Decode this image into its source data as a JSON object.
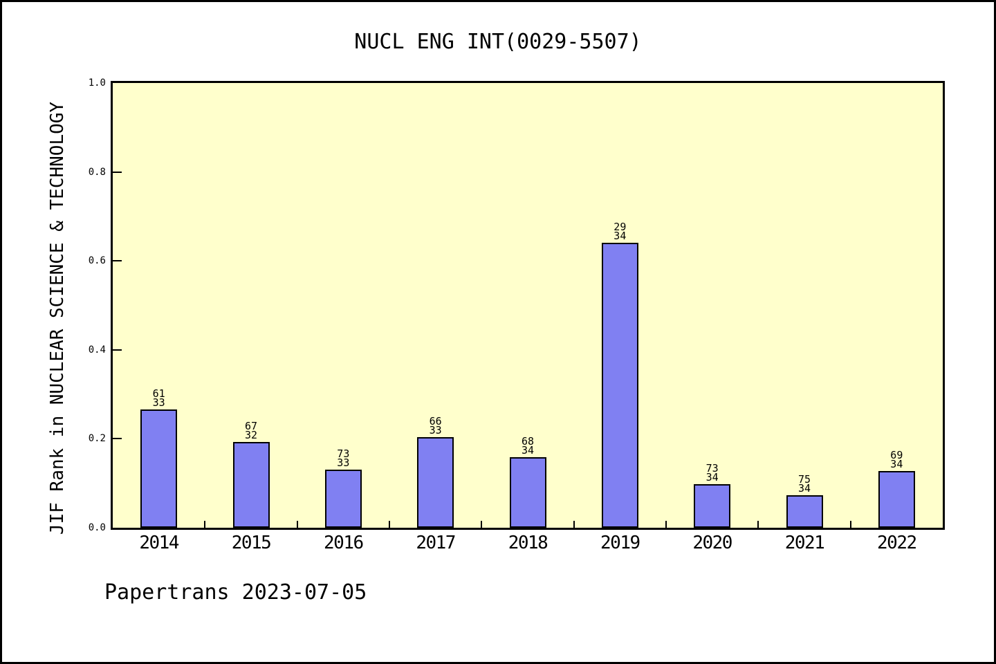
{
  "chart_data": {
    "type": "bar",
    "title": "NUCL ENG INT(0029-5507)",
    "xlabel": "",
    "ylabel": "JIF Rank in NUCLEAR SCIENCE & TECHNOLOGY",
    "ylim": [
      0.0,
      1.0
    ],
    "ytick_labels": [
      "0.0",
      "0.2",
      "0.4",
      "0.6",
      "0.8",
      "1.0"
    ],
    "grid": false,
    "legend": false,
    "plot_bg_color": "#FFFFCC",
    "bar_fill_color": "#8080F2",
    "bar_edge_color": "#000000",
    "axis_color": "#000000",
    "categories": [
      "2014",
      "2015",
      "2016",
      "2017",
      "2018",
      "2019",
      "2020",
      "2021",
      "2022"
    ],
    "values": [
      0.266,
      0.193,
      0.13,
      0.204,
      0.158,
      0.64,
      0.098,
      0.073,
      0.127
    ],
    "bar_annotations": [
      {
        "top": "61",
        "bottom": "33"
      },
      {
        "top": "67",
        "bottom": "32"
      },
      {
        "top": "73",
        "bottom": "33"
      },
      {
        "top": "66",
        "bottom": "33"
      },
      {
        "top": "68",
        "bottom": "34"
      },
      {
        "top": "29",
        "bottom": "34"
      },
      {
        "top": "73",
        "bottom": "34"
      },
      {
        "top": "75",
        "bottom": "34"
      },
      {
        "top": "69",
        "bottom": "34"
      }
    ]
  },
  "footer": {
    "text": "Papertrans 2023-07-05"
  }
}
